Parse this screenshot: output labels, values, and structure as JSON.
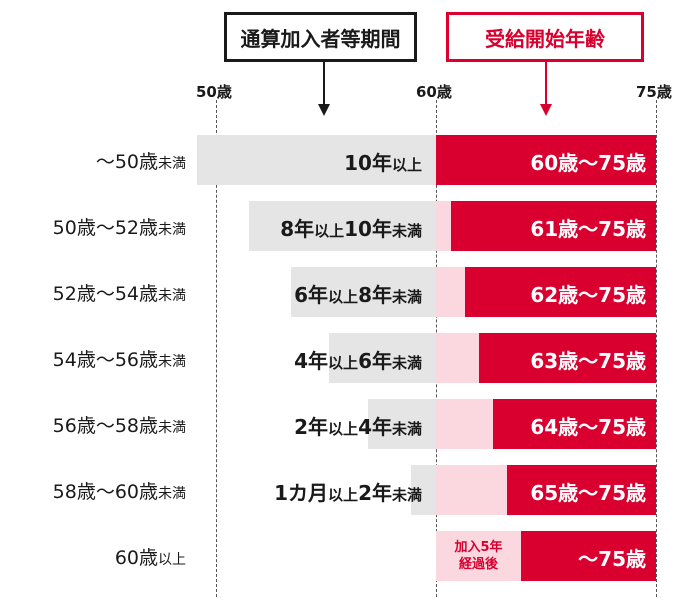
{
  "headers": {
    "period": "通算加入者等期間",
    "start_age": "受給開始年齢"
  },
  "axis_ticks": [
    "50歳",
    "60歳",
    "75歳"
  ],
  "rows": [
    {
      "label_main": "～50歳",
      "label_suffix": "未満",
      "period_parts": [
        "10年",
        "以上"
      ],
      "range": "60歳～75歳"
    },
    {
      "label_main": "50歳～52歳",
      "label_suffix": "未満",
      "period_parts": [
        "8年",
        "以上",
        "10年",
        "未満"
      ],
      "range": "61歳～75歳"
    },
    {
      "label_main": "52歳～54歳",
      "label_suffix": "未満",
      "period_parts": [
        "6年",
        "以上",
        "8年",
        "未満"
      ],
      "range": "62歳～75歳"
    },
    {
      "label_main": "54歳～56歳",
      "label_suffix": "未満",
      "period_parts": [
        "4年",
        "以上",
        "6年",
        "未満"
      ],
      "range": "63歳～75歳"
    },
    {
      "label_main": "56歳～58歳",
      "label_suffix": "未満",
      "period_parts": [
        "2年",
        "以上",
        "4年",
        "未満"
      ],
      "range": "64歳～75歳"
    },
    {
      "label_main": "58歳～60歳",
      "label_suffix": "未満",
      "period_parts": [
        "1カ月",
        "以上",
        "2年",
        "未満"
      ],
      "range": "65歳～75歳"
    },
    {
      "label_main": "60歳",
      "label_suffix": "以上",
      "period_parts": [],
      "range": "～75歳",
      "note_line1": "加入5年",
      "note_line2": "経過後"
    }
  ],
  "colors": {
    "accent_red": "#d9002f",
    "light_pink": "#fbd8e0",
    "gray_bar": "#e5e5e5",
    "text_dark": "#1a1a1a"
  }
}
